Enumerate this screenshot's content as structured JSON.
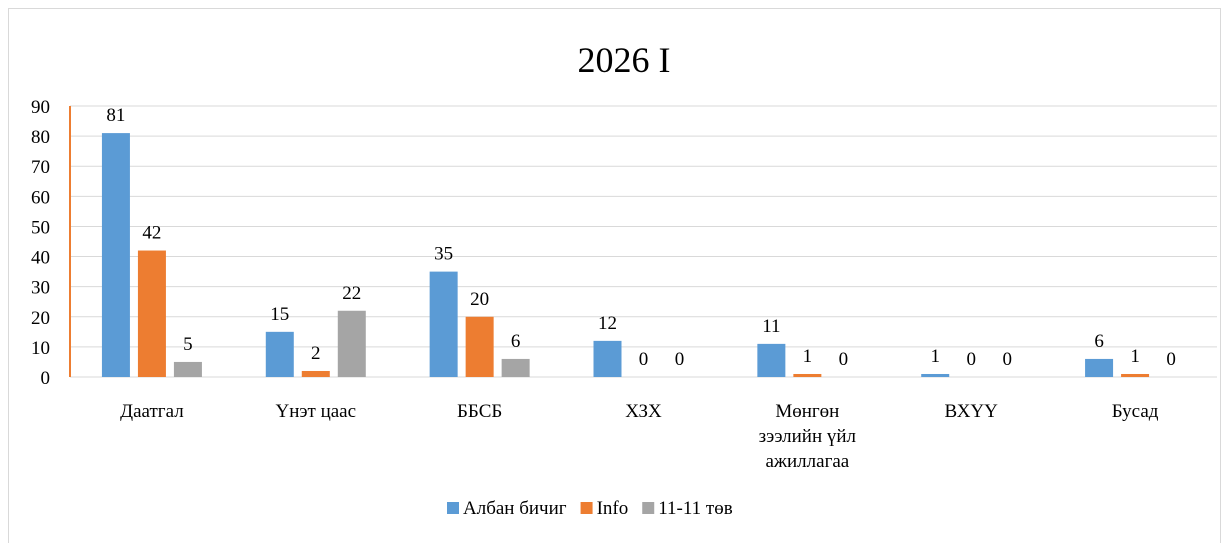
{
  "chart_data": {
    "type": "bar",
    "title": "2026 I",
    "xlabel": "",
    "ylabel": "",
    "ylim": [
      0,
      90
    ],
    "yticks": [
      0,
      10,
      20,
      30,
      40,
      50,
      60,
      70,
      80,
      90
    ],
    "categories": [
      [
        "Даатгал"
      ],
      [
        "Үнэт цаас"
      ],
      [
        "ББСБ"
      ],
      [
        "ХЗХ"
      ],
      [
        "Мөнгөн",
        "зээлийн үйл",
        "ажиллагаа"
      ],
      [
        "ВХҮҮ"
      ],
      [
        "Бусад"
      ]
    ],
    "series": [
      {
        "name": "Албан бичиг",
        "color": "#5b9bd5",
        "values": [
          81,
          15,
          35,
          12,
          11,
          1,
          6
        ]
      },
      {
        "name": "Info",
        "color": "#ed7d31",
        "values": [
          42,
          2,
          20,
          0,
          1,
          0,
          1
        ]
      },
      {
        "name": "11-11 төв",
        "color": "#a5a5a5",
        "values": [
          5,
          22,
          6,
          0,
          0,
          0,
          0
        ]
      }
    ],
    "grid": true,
    "legend_position": "bottom",
    "data_labels": true
  }
}
